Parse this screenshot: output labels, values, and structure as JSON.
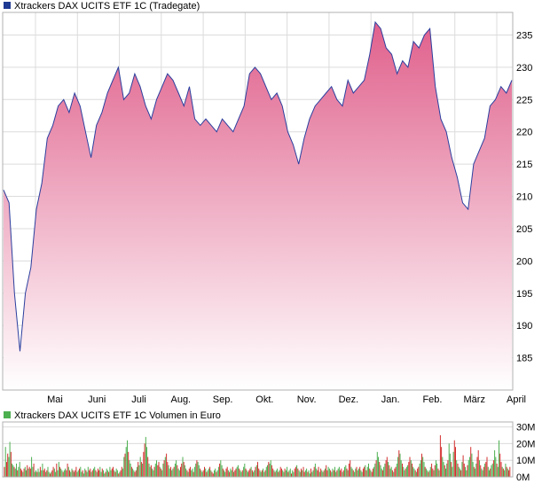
{
  "colors": {
    "price_line": "#2b3f9e",
    "area_top": "#e0608c",
    "area_bottom": "#ffffff",
    "grid": "#dcdcdc",
    "frame": "#b0b0b0",
    "vol_up": "#4caf50",
    "vol_down": "#d32f2f",
    "legend_price_box": "#1f3a93",
    "legend_vol_box": "#4caf50"
  },
  "chart_data": [
    {
      "type": "area",
      "title": "Xtrackers DAX UCITS ETF 1C (Tradegate)",
      "xlabel": "",
      "ylabel": "",
      "x_ticks": [
        "Mai",
        "Juni",
        "Juli",
        "Aug.",
        "Sep.",
        "Okt.",
        "Nov.",
        "Dez.",
        "Jan.",
        "Feb.",
        "März",
        "April"
      ],
      "y_ticks": [
        185,
        190,
        195,
        200,
        205,
        210,
        215,
        220,
        225,
        230,
        235
      ],
      "ylim": [
        180,
        238.5
      ],
      "grid": true,
      "legend": "top-left",
      "series": [
        {
          "name": "Xtrackers DAX UCITS ETF 1C (Tradegate)",
          "x": [
            "Apr-15",
            "Apr-18",
            "Apr-22",
            "Apr-25",
            "Apr-28",
            "May-01",
            "May-04",
            "May-08",
            "May-12",
            "May-16",
            "May-20",
            "May-24",
            "May-28",
            "Jun-01",
            "Jun-05",
            "Jun-09",
            "Jun-13",
            "Jun-17",
            "Jun-21",
            "Jun-25",
            "Jun-29",
            "Jul-03",
            "Jul-07",
            "Jul-11",
            "Jul-15",
            "Jul-19",
            "Jul-23",
            "Jul-27",
            "Jul-31",
            "Aug-04",
            "Aug-08",
            "Aug-12",
            "Aug-16",
            "Aug-20",
            "Aug-24",
            "Aug-28",
            "Sep-01",
            "Sep-05",
            "Sep-09",
            "Sep-13",
            "Sep-17",
            "Sep-21",
            "Sep-25",
            "Sep-29",
            "Oct-03",
            "Oct-07",
            "Oct-11",
            "Oct-15",
            "Oct-19",
            "Oct-23",
            "Oct-27",
            "Oct-31",
            "Nov-04",
            "Nov-08",
            "Nov-12",
            "Nov-16",
            "Nov-20",
            "Nov-24",
            "Nov-28",
            "Dec-02",
            "Dec-06",
            "Dec-10",
            "Dec-14",
            "Dec-18",
            "Dec-22",
            "Dec-26",
            "Dec-30",
            "Jan-03",
            "Jan-07",
            "Jan-11",
            "Jan-15",
            "Jan-19",
            "Jan-23",
            "Jan-27",
            "Jan-31",
            "Feb-04",
            "Feb-08",
            "Feb-12",
            "Feb-16",
            "Feb-20",
            "Feb-24",
            "Feb-28",
            "Mar-04",
            "Mar-08",
            "Mar-12",
            "Mar-16",
            "Mar-20",
            "Mar-24",
            "Mar-28",
            "Apr-01",
            "Apr-05",
            "Apr-09",
            "Apr-13",
            "Apr-17"
          ],
          "values": [
            211,
            209,
            195,
            186,
            195,
            199,
            208,
            212,
            219,
            221,
            224,
            225,
            223,
            226,
            224,
            220,
            216,
            221,
            223,
            226,
            228,
            230,
            225,
            226,
            229,
            227,
            224,
            222,
            225,
            227,
            229,
            228,
            226,
            224,
            227,
            222,
            221,
            222,
            221,
            220,
            222,
            221,
            220,
            222,
            224,
            229,
            230,
            229,
            227,
            225,
            226,
            224,
            220,
            218,
            215,
            219,
            222,
            224,
            225,
            226,
            227,
            225,
            224,
            228,
            226,
            227,
            228,
            232,
            237,
            236,
            233,
            232,
            229,
            231,
            230,
            234,
            233,
            235,
            236,
            227,
            222,
            220,
            216,
            213,
            209,
            208,
            215,
            217,
            219,
            224,
            225,
            227,
            226,
            228
          ]
        }
      ]
    },
    {
      "type": "bar",
      "title": "Xtrackers DAX UCITS ETF 1C Volumen in Euro",
      "xlabel": "",
      "ylabel": "",
      "y_ticks": [
        "0M",
        "10M",
        "20M",
        "30M"
      ],
      "ylim": [
        0,
        33
      ],
      "grid": true,
      "series": [
        {
          "name": "Xtrackers DAX UCITS ETF 1C Volumen in Euro",
          "values": [
            6,
            18,
            9,
            14,
            12,
            21,
            15,
            8,
            7,
            6,
            5,
            8,
            4,
            6,
            9,
            5,
            4,
            3,
            5,
            6,
            4,
            7,
            5,
            6,
            5,
            12,
            6,
            8,
            3,
            4,
            3,
            5,
            3,
            6,
            4,
            8,
            4,
            5,
            3,
            4,
            6,
            3,
            2,
            3,
            4,
            6,
            5,
            3,
            8,
            4,
            9,
            6,
            5,
            4,
            3,
            4,
            5,
            4,
            8,
            6,
            4,
            3,
            5,
            4,
            3,
            4,
            6,
            3,
            4,
            5,
            6,
            3,
            4,
            2,
            5,
            4,
            3,
            6,
            4,
            5,
            3,
            4,
            5,
            6,
            4,
            3,
            5,
            4,
            6,
            3,
            5,
            4,
            2,
            3,
            5,
            4,
            3,
            6,
            4,
            5,
            6,
            4,
            3,
            5,
            4,
            2,
            3,
            4,
            6,
            5,
            12,
            14,
            18,
            22,
            15,
            10,
            8,
            6,
            5,
            4,
            3,
            4,
            6,
            9,
            7,
            12,
            9,
            8,
            15,
            20,
            24,
            18,
            12,
            8,
            6,
            7,
            5,
            4,
            6,
            8,
            10,
            7,
            9,
            6,
            5,
            4,
            8,
            10,
            12,
            14,
            9,
            7,
            5,
            6,
            4,
            5,
            6,
            8,
            10,
            7,
            5,
            4,
            6,
            8,
            12,
            9,
            7,
            5,
            4,
            3,
            5,
            6,
            4,
            5,
            3,
            6,
            8,
            10,
            9,
            7,
            5,
            4,
            3,
            4,
            6,
            5,
            3,
            4,
            5,
            6,
            4,
            3,
            2,
            4,
            5,
            3,
            4,
            6,
            8,
            10,
            7,
            5,
            4,
            3,
            5,
            6,
            4,
            3,
            5,
            4,
            6,
            3,
            4,
            5,
            6,
            7,
            5,
            4,
            3,
            4,
            6,
            8,
            5,
            4,
            3,
            4,
            5,
            6,
            4,
            3,
            4,
            6,
            7,
            9,
            5,
            4,
            3,
            4,
            5,
            3,
            4,
            6,
            7,
            9,
            8,
            10,
            7,
            5,
            4,
            3,
            4,
            5,
            3,
            4,
            6,
            5,
            4,
            3,
            5,
            4,
            6,
            3,
            4,
            5,
            2,
            4,
            3,
            5,
            6,
            7,
            5,
            4,
            3,
            5,
            4,
            6,
            3,
            4,
            5,
            3,
            4,
            2,
            5,
            3,
            4,
            6,
            8,
            5,
            4,
            6,
            3,
            5,
            4,
            3,
            4,
            5,
            7,
            4,
            6,
            5,
            4,
            3,
            5,
            4,
            6,
            3,
            4,
            5,
            6,
            4,
            5,
            3,
            4,
            6,
            7,
            5,
            4,
            8,
            10,
            6,
            5,
            4,
            3,
            5,
            6,
            4,
            5,
            6,
            4,
            3,
            5,
            6,
            7,
            4,
            6,
            8,
            5,
            4,
            3,
            5,
            6,
            8,
            10,
            15,
            12,
            9,
            7,
            5,
            4,
            6,
            8,
            10,
            12,
            9,
            7,
            5,
            6,
            4,
            3,
            5,
            6,
            8,
            12,
            16,
            14,
            10,
            8,
            6,
            4,
            5,
            6,
            7,
            9,
            12,
            10,
            8,
            6,
            5,
            4,
            3,
            5,
            6,
            8,
            10,
            14,
            12,
            9,
            6,
            5,
            4,
            3,
            4,
            6,
            8,
            5,
            4,
            7,
            10,
            8,
            5,
            4,
            25,
            18,
            12,
            9,
            7,
            5,
            8,
            10,
            20,
            14,
            9,
            6,
            15,
            22,
            18,
            10,
            8,
            6,
            5,
            4,
            9,
            13,
            8,
            6,
            4,
            7,
            10,
            12,
            18,
            14,
            9,
            6,
            5,
            8,
            12,
            16,
            10,
            7,
            5,
            4,
            6,
            8,
            9,
            12,
            6,
            4,
            5,
            7,
            8,
            10,
            16,
            12,
            8,
            6,
            22,
            14,
            9,
            6,
            5,
            4,
            8,
            6,
            5,
            4,
            6
          ]
        }
      ]
    }
  ]
}
